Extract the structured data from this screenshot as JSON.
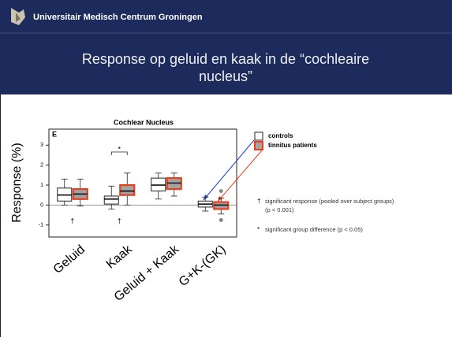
{
  "header": {
    "institution": "Universitair Medisch Centrum Groningen",
    "title": [
      "Response op geluid en kaak in de “cochleaire",
      "nucleus”"
    ]
  },
  "chart_data": {
    "type": "box",
    "title": "Cochlear Nucleus",
    "panel": "E",
    "y_label": "Response (%)",
    "categories": [
      "Geluid",
      "Kaak",
      "Geluid + Kaak",
      "G+K-(GK)"
    ],
    "ylim": [
      -1.6,
      3.8
    ],
    "yticks": [
      -1,
      0,
      1,
      2,
      3
    ],
    "series": [
      {
        "name": "controls",
        "color": "#ffffff",
        "edge": "#222222",
        "min": [
          0,
          -0.2,
          0.3,
          -0.3
        ],
        "q1": [
          0.2,
          0.05,
          0.7,
          -0.1
        ],
        "median": [
          0.5,
          0.3,
          1.0,
          0.05
        ],
        "q3": [
          0.85,
          0.45,
          1.35,
          0.2
        ],
        "max": [
          1.3,
          0.95,
          1.6,
          0.4
        ],
        "outliers": [
          [],
          [],
          [],
          []
        ]
      },
      {
        "name": "tinnitus patients",
        "color": "#a3a3a3",
        "edge": "#e8401c",
        "min": [
          -0.05,
          0,
          0.45,
          -0.45
        ],
        "q1": [
          0.3,
          0.5,
          0.8,
          -0.2
        ],
        "median": [
          0.55,
          0.7,
          1.1,
          0
        ],
        "q3": [
          0.8,
          1.0,
          1.35,
          0.15
        ],
        "max": [
          1.3,
          1.6,
          1.6,
          0.35
        ],
        "outliers": [
          [],
          [],
          [],
          [
            0.7,
            -0.75
          ]
        ]
      }
    ],
    "annotations": [
      "†",
      "†",
      "*"
    ],
    "notes": [
      {
        "symbol": "†",
        "lines": [
          "significant response (pooled over subject groups)",
          "(p < 0.001)"
        ]
      },
      {
        "symbol": "*",
        "lines": [
          "significant group difference (p < 0.05)"
        ]
      }
    ]
  }
}
